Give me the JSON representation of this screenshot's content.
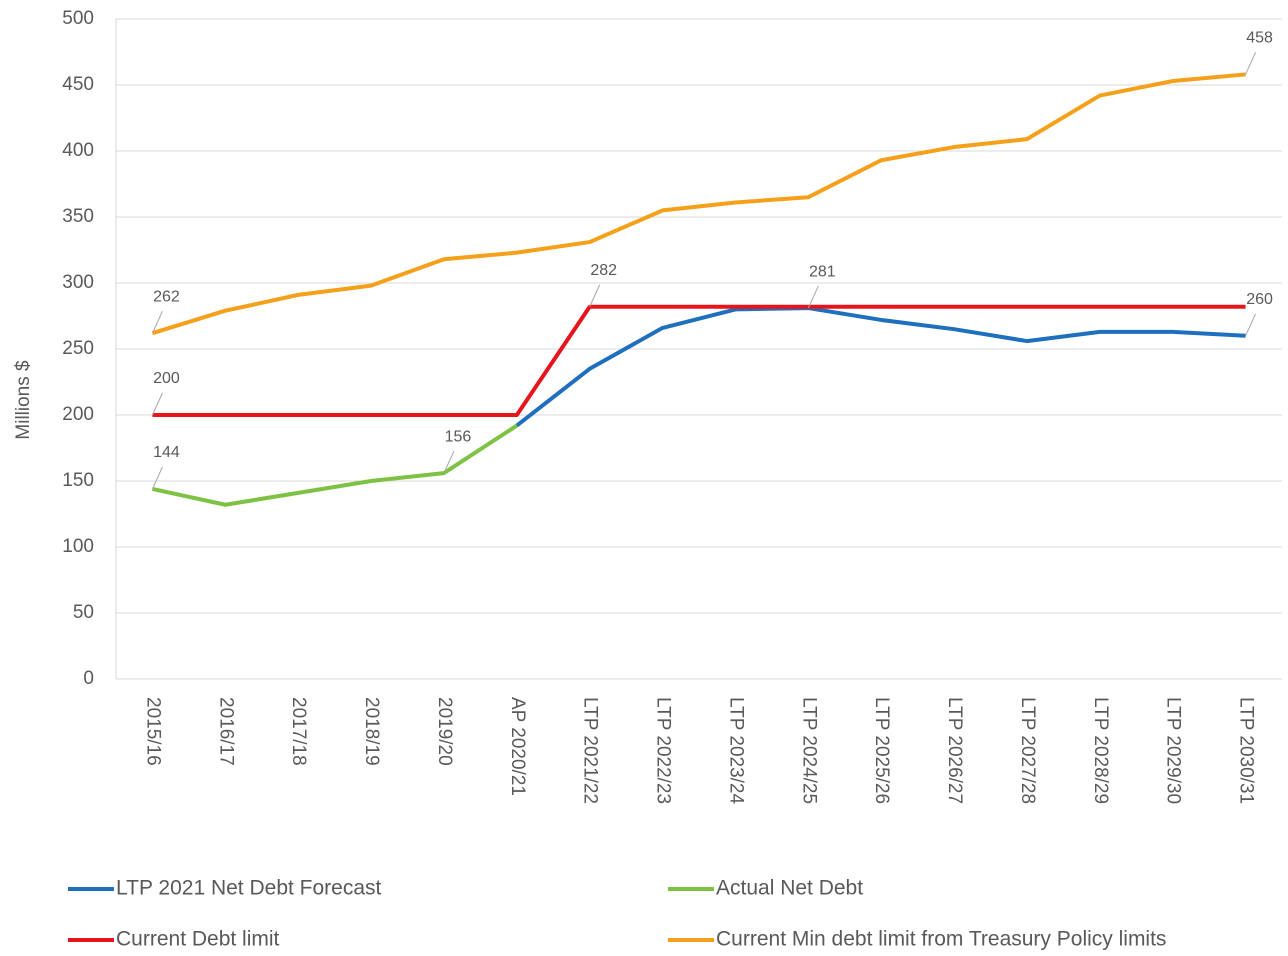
{
  "chart_data": {
    "type": "line",
    "y_label": "Millions $",
    "categories": [
      "2015/16",
      "2016/17",
      "2017/18",
      "2018/19",
      "2019/20",
      "AP 2020/21",
      "LTP 2021/22",
      "LTP 2022/23",
      "LTP 2023/24",
      "LTP 2024/25",
      "LTP 2025/26",
      "LTP 2026/27",
      "LTP 2027/28",
      "LTP 2028/29",
      "LTP 2029/30",
      "LTP 2030/31"
    ],
    "series": [
      {
        "name": "LTP 2021 Net Debt Forecast",
        "color": "#1f6fbf",
        "labeled": [
          9,
          15
        ],
        "values": [
          null,
          null,
          null,
          null,
          null,
          192,
          235,
          266,
          280,
          281,
          272,
          265,
          256,
          263,
          263,
          260
        ]
      },
      {
        "name": "Actual Net Debt",
        "color": "#7dc243",
        "labeled": [
          0,
          4
        ],
        "values": [
          144,
          132,
          141,
          150,
          156,
          192,
          null,
          null,
          null,
          null,
          null,
          null,
          null,
          null,
          null,
          null
        ]
      },
      {
        "name": "Current Debt limit",
        "color": "#e8141c",
        "labeled": [
          0,
          6
        ],
        "values": [
          200,
          200,
          200,
          200,
          200,
          200,
          282,
          282,
          282,
          282,
          282,
          282,
          282,
          282,
          282,
          282
        ]
      },
      {
        "name": "Current Min debt limit from Treasury Policy limits",
        "color": "#f5a01a",
        "labeled": [
          0,
          15
        ],
        "values": [
          262,
          279,
          291,
          298,
          318,
          323,
          331,
          355,
          361,
          365,
          393,
          403,
          409,
          442,
          453,
          458
        ]
      }
    ],
    "ylim": [
      0,
      500
    ],
    "yticks": [
      0,
      50,
      100,
      150,
      200,
      250,
      300,
      350,
      400,
      450,
      500
    ],
    "grid": true,
    "legend": "bottom"
  }
}
